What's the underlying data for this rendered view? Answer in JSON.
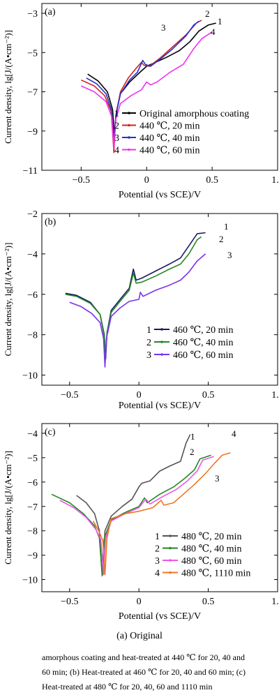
{
  "figure": {
    "caption_main": "(a)   Original",
    "caption_lines": [
      "amorphous coating and heat-treated at 440 ℃ for 20, 40 and",
      "60 min; (b) Heat-treated at 460 ℃ for 20, 40 and 60 min; (c)",
      "Heat-treated at 480 ℃ for 20, 40, 60 and 1110 min"
    ]
  },
  "chart_data": [
    {
      "type": "line",
      "panel_label": "(a)",
      "xlabel": "Potential (vs SCE)/V",
      "ylabel": "Current density, lg[J/(A•cm⁻²)]",
      "xlim": [
        -0.8,
        1.0
      ],
      "ylim": [
        -11,
        -2.5
      ],
      "xticks": [
        -0.5,
        0,
        0.5,
        1.0
      ],
      "xtick_labels": [
        "−0.5",
        "0",
        "0.5",
        "1.0"
      ],
      "yticks": [
        -3,
        -5,
        -7,
        -9,
        -11
      ],
      "ytick_labels": [
        "−3",
        "−5",
        "−7",
        "−9",
        "−11"
      ],
      "legend_position": "bottom-center",
      "series": [
        {
          "id": "1",
          "name": "Original amorphous coating",
          "color": "#000000",
          "points": [
            [
              -0.45,
              -6.1
            ],
            [
              -0.37,
              -6.45
            ],
            [
              -0.3,
              -7.0
            ],
            [
              -0.26,
              -7.9
            ],
            [
              -0.245,
              -9.3
            ],
            [
              -0.23,
              -8.0
            ],
            [
              -0.2,
              -7.1
            ],
            [
              -0.13,
              -6.5
            ],
            [
              -0.05,
              -6.0
            ],
            [
              0.0,
              -5.7
            ],
            [
              0.05,
              -5.55
            ],
            [
              0.15,
              -5.25
            ],
            [
              0.25,
              -4.9
            ],
            [
              0.33,
              -4.45
            ],
            [
              0.4,
              -3.9
            ],
            [
              0.47,
              -3.6
            ],
            [
              0.53,
              -3.5
            ]
          ]
        },
        {
          "id": "2",
          "name": "440 ℃, 20 min",
          "color": "#d42020",
          "points": [
            [
              -0.5,
              -6.4
            ],
            [
              -0.4,
              -6.7
            ],
            [
              -0.32,
              -7.2
            ],
            [
              -0.27,
              -8.0
            ],
            [
              -0.25,
              -10.1
            ],
            [
              -0.235,
              -8.2
            ],
            [
              -0.2,
              -7.0
            ],
            [
              -0.14,
              -6.3
            ],
            [
              -0.08,
              -5.8
            ],
            [
              -0.04,
              -5.5
            ],
            [
              -0.02,
              -5.65
            ],
            [
              0.02,
              -5.7
            ],
            [
              0.1,
              -5.3
            ],
            [
              0.2,
              -4.7
            ],
            [
              0.3,
              -4.1
            ],
            [
              0.38,
              -3.5
            ],
            [
              0.42,
              -3.35
            ]
          ]
        },
        {
          "id": "3",
          "name": "440 ℃, 40 min",
          "color": "#2233cc",
          "points": [
            [
              -0.46,
              -6.3
            ],
            [
              -0.38,
              -6.6
            ],
            [
              -0.31,
              -7.1
            ],
            [
              -0.27,
              -7.9
            ],
            [
              -0.25,
              -9.5
            ],
            [
              -0.235,
              -8.2
            ],
            [
              -0.2,
              -7.1
            ],
            [
              -0.13,
              -6.4
            ],
            [
              -0.07,
              -6.0
            ],
            [
              -0.03,
              -5.4
            ],
            [
              -0.01,
              -5.6
            ],
            [
              0.03,
              -5.7
            ],
            [
              0.12,
              -5.25
            ],
            [
              0.2,
              -4.8
            ],
            [
              0.3,
              -4.15
            ],
            [
              0.36,
              -3.6
            ],
            [
              0.4,
              -3.4
            ]
          ]
        },
        {
          "id": "4",
          "name": "440 ℃, 60 min",
          "color": "#ee33ee",
          "points": [
            [
              -0.5,
              -6.7
            ],
            [
              -0.4,
              -7.0
            ],
            [
              -0.31,
              -7.5
            ],
            [
              -0.265,
              -8.3
            ],
            [
              -0.25,
              -9.9
            ],
            [
              -0.235,
              -8.4
            ],
            [
              -0.2,
              -7.6
            ],
            [
              -0.12,
              -7.2
            ],
            [
              -0.04,
              -6.9
            ],
            [
              0.0,
              -6.5
            ],
            [
              0.03,
              -6.65
            ],
            [
              0.08,
              -6.5
            ],
            [
              0.18,
              -6.0
            ],
            [
              0.28,
              -5.6
            ],
            [
              0.36,
              -4.8
            ],
            [
              0.42,
              -4.3
            ],
            [
              0.5,
              -3.95
            ]
          ]
        }
      ]
    },
    {
      "type": "line",
      "panel_label": "(b)",
      "xlabel": "Potential (vs SCE)/V",
      "ylabel": "Current density, lg[J/(A•cm⁻²)]",
      "xlim": [
        -0.7,
        1.0
      ],
      "ylim": [
        -10.5,
        -2
      ],
      "xticks": [
        -0.5,
        0,
        0.5,
        1.0
      ],
      "xtick_labels": [
        "−0.5",
        "0",
        "0.5",
        "1.0"
      ],
      "yticks": [
        -2,
        -4,
        -6,
        -8,
        -10
      ],
      "ytick_labels": [
        "−2",
        "−4",
        "−6",
        "−8",
        "−10"
      ],
      "legend_position": "bottom-right",
      "series": [
        {
          "id": "1",
          "name": "460 ℃, 20 min",
          "color": "#1a1a66",
          "points": [
            [
              -0.53,
              -5.95
            ],
            [
              -0.45,
              -6.05
            ],
            [
              -0.35,
              -6.4
            ],
            [
              -0.28,
              -7.0
            ],
            [
              -0.25,
              -8.0
            ],
            [
              -0.24,
              -9.2
            ],
            [
              -0.23,
              -7.9
            ],
            [
              -0.2,
              -6.8
            ],
            [
              -0.13,
              -6.2
            ],
            [
              -0.07,
              -5.7
            ],
            [
              -0.04,
              -4.75
            ],
            [
              -0.02,
              -5.3
            ],
            [
              0.02,
              -5.2
            ],
            [
              0.12,
              -4.85
            ],
            [
              0.22,
              -4.5
            ],
            [
              0.3,
              -4.2
            ],
            [
              0.36,
              -3.6
            ],
            [
              0.42,
              -3.0
            ],
            [
              0.48,
              -2.95
            ]
          ]
        },
        {
          "id": "2",
          "name": "460 ℃, 40 min",
          "color": "#228822",
          "points": [
            [
              -0.53,
              -6.0
            ],
            [
              -0.45,
              -6.1
            ],
            [
              -0.35,
              -6.45
            ],
            [
              -0.28,
              -7.0
            ],
            [
              -0.25,
              -8.1
            ],
            [
              -0.24,
              -9.0
            ],
            [
              -0.23,
              -7.9
            ],
            [
              -0.2,
              -6.9
            ],
            [
              -0.13,
              -6.3
            ],
            [
              -0.07,
              -5.8
            ],
            [
              -0.04,
              -4.95
            ],
            [
              -0.02,
              -5.45
            ],
            [
              0.02,
              -5.4
            ],
            [
              0.12,
              -5.1
            ],
            [
              0.22,
              -4.75
            ],
            [
              0.3,
              -4.5
            ],
            [
              0.36,
              -4.0
            ],
            [
              0.42,
              -3.3
            ],
            [
              0.45,
              -3.15
            ]
          ]
        },
        {
          "id": "3",
          "name": "460 ℃, 60 min",
          "color": "#7733ee",
          "points": [
            [
              -0.5,
              -6.4
            ],
            [
              -0.42,
              -6.6
            ],
            [
              -0.34,
              -6.95
            ],
            [
              -0.28,
              -7.4
            ],
            [
              -0.255,
              -8.2
            ],
            [
              -0.245,
              -9.6
            ],
            [
              -0.235,
              -8.2
            ],
            [
              -0.2,
              -7.1
            ],
            [
              -0.14,
              -6.7
            ],
            [
              -0.07,
              -6.35
            ],
            [
              0.0,
              -6.25
            ],
            [
              0.01,
              -5.9
            ],
            [
              0.03,
              -6.1
            ],
            [
              0.12,
              -5.8
            ],
            [
              0.22,
              -5.55
            ],
            [
              0.3,
              -5.3
            ],
            [
              0.36,
              -4.9
            ],
            [
              0.42,
              -4.35
            ],
            [
              0.48,
              -4.0
            ]
          ]
        }
      ]
    },
    {
      "type": "line",
      "panel_label": "(c)",
      "xlabel": "Potential (vs SCE)/V",
      "ylabel": "Current density, lg[J/(A•cm⁻²)]",
      "xlim": [
        -0.7,
        1.0
      ],
      "ylim": [
        -10.5,
        -3.6
      ],
      "xticks": [
        -0.5,
        0,
        0.5,
        1.0
      ],
      "xtick_labels": [
        "−0.5",
        "0",
        "0.5",
        "1.0"
      ],
      "yticks": [
        -4,
        -5,
        -6,
        -7,
        -8,
        -9,
        -10
      ],
      "ytick_labels": [
        "−4",
        "−5",
        "−6",
        "−7",
        "−8",
        "−9",
        "−10"
      ],
      "legend_position": "bottom-right",
      "series": [
        {
          "id": "1",
          "name": "480 ℃, 20 min",
          "color": "#555555",
          "points": [
            [
              -0.45,
              -6.55
            ],
            [
              -0.38,
              -6.85
            ],
            [
              -0.32,
              -7.3
            ],
            [
              -0.285,
              -8.0
            ],
            [
              -0.265,
              -9.8
            ],
            [
              -0.245,
              -8.0
            ],
            [
              -0.2,
              -7.4
            ],
            [
              -0.12,
              -7.0
            ],
            [
              -0.05,
              -6.7
            ],
            [
              0.0,
              -6.2
            ],
            [
              0.02,
              -6.05
            ],
            [
              0.08,
              -5.95
            ],
            [
              0.15,
              -5.55
            ],
            [
              0.22,
              -5.35
            ],
            [
              0.3,
              -5.15
            ],
            [
              0.34,
              -4.4
            ],
            [
              0.37,
              -4.05
            ]
          ]
        },
        {
          "id": "2",
          "name": "480 ℃, 40 min",
          "color": "#228822",
          "points": [
            [
              -0.63,
              -6.5
            ],
            [
              -0.5,
              -6.85
            ],
            [
              -0.4,
              -7.3
            ],
            [
              -0.32,
              -7.8
            ],
            [
              -0.285,
              -8.3
            ],
            [
              -0.265,
              -9.85
            ],
            [
              -0.25,
              -8.3
            ],
            [
              -0.2,
              -7.55
            ],
            [
              -0.1,
              -7.25
            ],
            [
              0.0,
              -7.0
            ],
            [
              0.04,
              -6.65
            ],
            [
              0.06,
              -6.85
            ],
            [
              0.15,
              -6.5
            ],
            [
              0.25,
              -6.2
            ],
            [
              0.33,
              -5.85
            ],
            [
              0.4,
              -5.5
            ],
            [
              0.44,
              -5.05
            ],
            [
              0.52,
              -4.9
            ]
          ]
        },
        {
          "id": "3",
          "name": "480 ℃, 60 min",
          "color": "#ee55ee",
          "points": [
            [
              -0.57,
              -6.75
            ],
            [
              -0.47,
              -7.05
            ],
            [
              -0.38,
              -7.45
            ],
            [
              -0.31,
              -7.95
            ],
            [
              -0.275,
              -8.35
            ],
            [
              -0.255,
              -9.8
            ],
            [
              -0.24,
              -8.3
            ],
            [
              -0.2,
              -7.6
            ],
            [
              -0.1,
              -7.3
            ],
            [
              0.0,
              -7.05
            ],
            [
              0.05,
              -6.7
            ],
            [
              0.08,
              -6.9
            ],
            [
              0.17,
              -6.6
            ],
            [
              0.27,
              -6.3
            ],
            [
              0.35,
              -5.95
            ],
            [
              0.42,
              -5.55
            ],
            [
              0.46,
              -5.1
            ],
            [
              0.54,
              -4.95
            ]
          ]
        },
        {
          "id": "4",
          "name": "480 ℃, 1110 min",
          "color": "#ee7722",
          "points": [
            [
              -0.33,
              -7.6
            ],
            [
              -0.29,
              -8.0
            ],
            [
              -0.26,
              -8.4
            ],
            [
              -0.245,
              -9.8
            ],
            [
              -0.23,
              -8.3
            ],
            [
              -0.2,
              -7.5
            ],
            [
              -0.1,
              -7.3
            ],
            [
              0.0,
              -7.2
            ],
            [
              0.1,
              -7.05
            ],
            [
              0.16,
              -6.75
            ],
            [
              0.18,
              -6.95
            ],
            [
              0.25,
              -6.85
            ],
            [
              0.32,
              -6.5
            ],
            [
              0.4,
              -6.1
            ],
            [
              0.48,
              -5.65
            ],
            [
              0.55,
              -5.2
            ],
            [
              0.6,
              -4.9
            ],
            [
              0.66,
              -4.8
            ]
          ]
        }
      ]
    }
  ]
}
